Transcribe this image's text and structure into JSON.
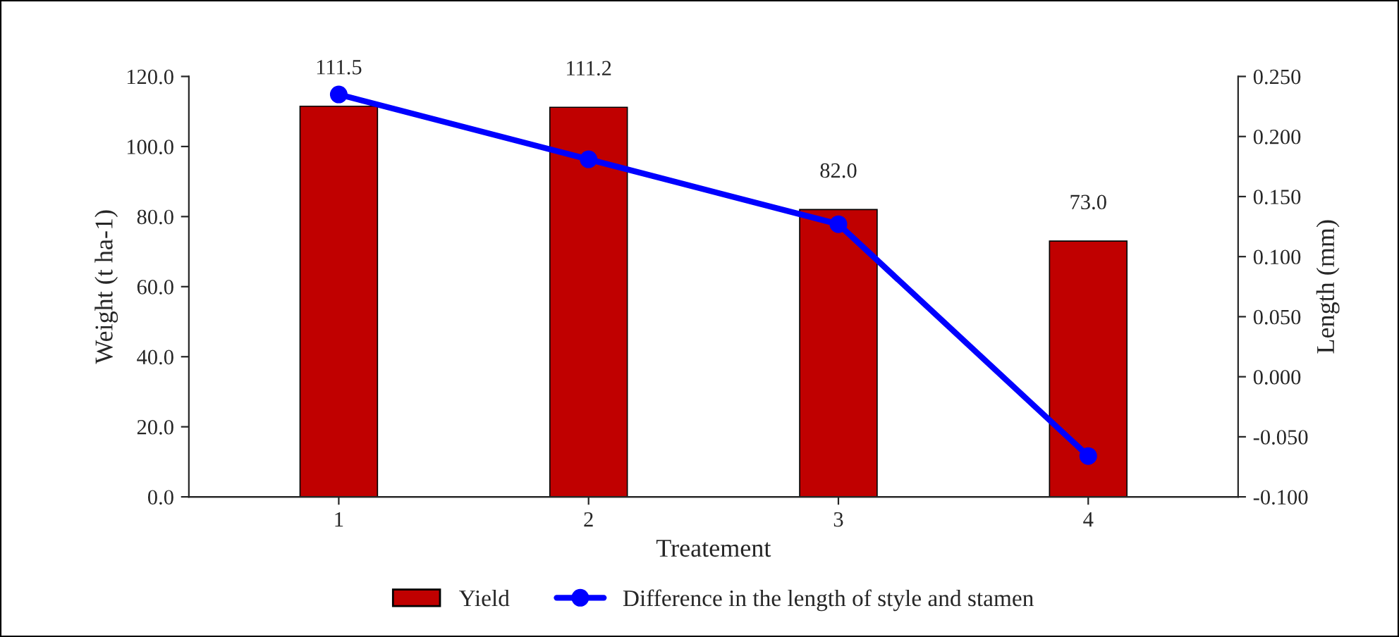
{
  "chart_data": {
    "type": "bar",
    "xlabel": "Treatement",
    "ylabel": "Weight (t ha-1)",
    "y2label": "Length (mm)",
    "categories": [
      "1",
      "2",
      "3",
      "4"
    ],
    "series": [
      {
        "name": "Yield",
        "color": "#c00000",
        "values": [
          111.5,
          111.2,
          82.0,
          73.0
        ],
        "value_labels": [
          "111.5",
          "111.2",
          "82.0",
          "73.0"
        ]
      },
      {
        "name": "Difference in the length of style and stamen",
        "type": "line",
        "axis": "y2",
        "color": "#0000ff",
        "values": [
          0.235,
          0.181,
          0.127,
          -0.066
        ],
        "marker": "circle",
        "line_style": "solid"
      }
    ],
    "ylim": [
      0,
      120
    ],
    "yticks": [
      {
        "value": 0,
        "label": "0.0"
      },
      {
        "value": 20,
        "label": "20.0"
      },
      {
        "value": 40,
        "label": "40.0"
      },
      {
        "value": 60,
        "label": "60.0"
      },
      {
        "value": 80,
        "label": "80.0"
      },
      {
        "value": 100,
        "label": "100.0"
      },
      {
        "value": 120,
        "label": "120.0"
      }
    ],
    "y2lim": [
      -0.1,
      0.25
    ],
    "y2ticks": [
      {
        "value": -0.1,
        "label": "-0.100"
      },
      {
        "value": -0.05,
        "label": "-0.050"
      },
      {
        "value": 0,
        "label": "0.000"
      },
      {
        "value": 0.05,
        "label": "0.050"
      },
      {
        "value": 0.1,
        "label": "0.100"
      },
      {
        "value": 0.15,
        "label": "0.150"
      },
      {
        "value": 0.2,
        "label": "0.200"
      },
      {
        "value": 0.25,
        "label": "0.250"
      }
    ],
    "grid": false,
    "legend": "bottom"
  }
}
